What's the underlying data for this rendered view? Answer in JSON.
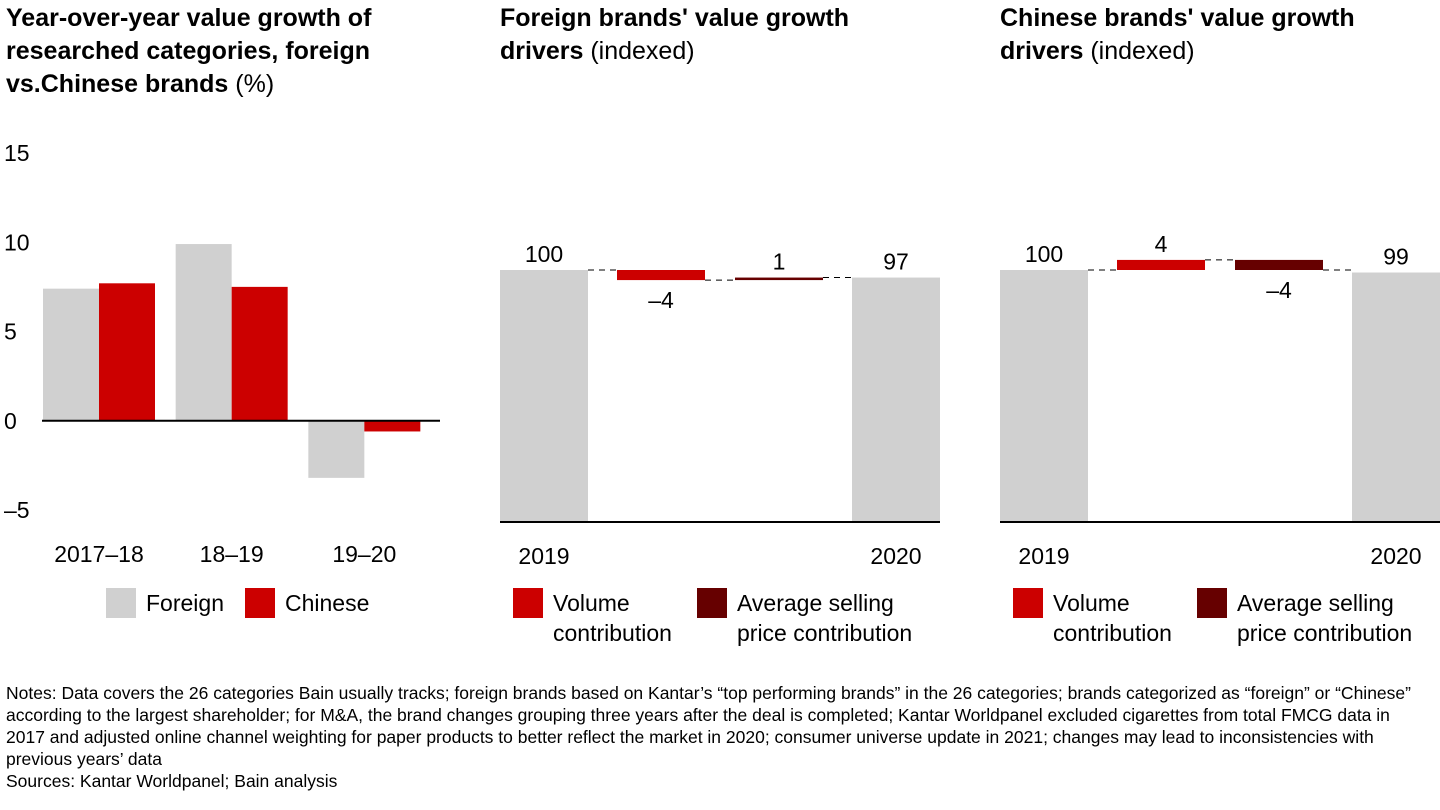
{
  "colors": {
    "foreign": "#d0d0d0",
    "chinese": "#cc0000",
    "volume": "#cc0000",
    "price": "#660000",
    "axis": "#000000"
  },
  "panel1": {
    "title_bold": "Year-over-year value growth of researched categories, foreign vs.Chinese brands",
    "title_unit": "(%)",
    "legend": {
      "foreign": "Foreign",
      "chinese": "Chinese"
    }
  },
  "panel2": {
    "title_bold": "Foreign brands' value growth drivers",
    "title_unit": "(indexed)",
    "legend": {
      "volume": "Volume contribution",
      "price": "Average selling price contribution"
    }
  },
  "panel3": {
    "title_bold": "Chinese brands' value growth drivers",
    "title_unit": "(indexed)",
    "legend": {
      "volume": "Volume contribution",
      "price": "Average selling price contribution"
    }
  },
  "chart_data": [
    {
      "type": "bar",
      "categories": [
        "2017–18",
        "18–19",
        "19–20"
      ],
      "series": [
        {
          "name": "Foreign",
          "values": [
            7.4,
            9.9,
            -3.2
          ]
        },
        {
          "name": "Chinese",
          "values": [
            7.7,
            7.5,
            -0.6
          ]
        }
      ],
      "ylim": [
        -5,
        15
      ],
      "yticks": [
        15,
        10,
        5,
        0,
        -5
      ],
      "ytick_labels": [
        "15",
        "10",
        "5",
        "0",
        "–5"
      ]
    },
    {
      "type": "bar",
      "subtype": "waterfall",
      "categories": [
        "2019",
        "",
        "",
        "2020"
      ],
      "steps": [
        {
          "label": "2019",
          "kind": "total",
          "value": 100,
          "display": "100"
        },
        {
          "label": "",
          "kind": "volume",
          "value": -4,
          "display": "–4"
        },
        {
          "label": "",
          "kind": "price",
          "value": 1,
          "display": "1"
        },
        {
          "label": "2020",
          "kind": "total",
          "value": 97,
          "display": "97"
        }
      ]
    },
    {
      "type": "bar",
      "subtype": "waterfall",
      "categories": [
        "2019",
        "",
        "",
        "2020"
      ],
      "steps": [
        {
          "label": "2019",
          "kind": "total",
          "value": 100,
          "display": "100"
        },
        {
          "label": "",
          "kind": "volume",
          "value": 4,
          "display": "4"
        },
        {
          "label": "",
          "kind": "price",
          "value": -4,
          "display": "–4"
        },
        {
          "label": "2020",
          "kind": "total",
          "value": 99,
          "display": "99"
        }
      ]
    }
  ],
  "notes": {
    "text": "Notes: Data covers the 26 categories Bain usually tracks; foreign brands based on Kantar’s “top performing brands” in the 26 categories; brands categorized as “foreign” or “Chinese” according to the largest shareholder; for M&A, the brand changes grouping three years after the deal is completed; Kantar Worldpanel excluded cigarettes from total FMCG data in 2017 and adjusted online channel weighting for paper products to better reflect the market in 2020; consumer universe update in 2021; changes may lead to inconsistencies with previous years’ data",
    "sources": "Sources: Kantar Worldpanel; Bain analysis"
  }
}
